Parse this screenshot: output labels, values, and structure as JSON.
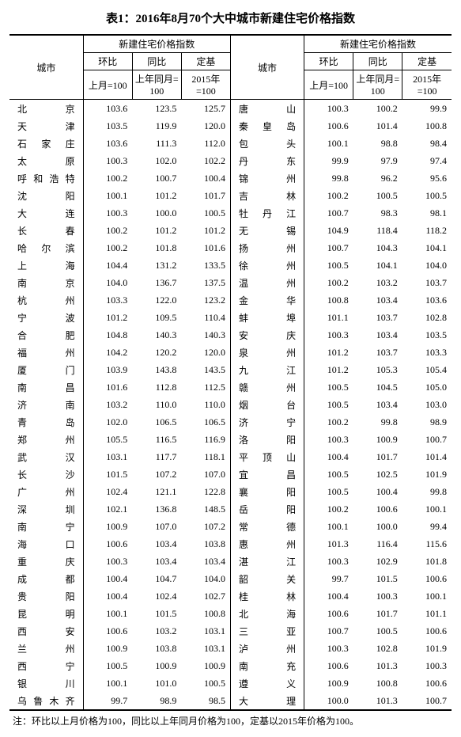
{
  "title": "表1：2016年8月70个大中城市新建住宅价格指数",
  "header": {
    "city": "城市",
    "index_group": "新建住宅价格指数",
    "mom": "环比",
    "yoy": "同比",
    "base": "定基",
    "mom_sub": "上月=100",
    "yoy_sub": "上年同月=\n100",
    "base_sub": "2015年\n=100"
  },
  "note": "注：环比以上月价格为100，同比以上年同月价格为100，定基以2015年价格为100。",
  "left_rows": [
    {
      "city": "北　　京",
      "mom": "103.6",
      "yoy": "123.5",
      "base": "125.7"
    },
    {
      "city": "天　　津",
      "mom": "103.5",
      "yoy": "119.9",
      "base": "120.0"
    },
    {
      "city": "石 家 庄",
      "mom": "103.6",
      "yoy": "111.3",
      "base": "112.0"
    },
    {
      "city": "太　　原",
      "mom": "100.3",
      "yoy": "102.0",
      "base": "102.2"
    },
    {
      "city": "呼和浩特",
      "mom": "100.2",
      "yoy": "100.7",
      "base": "100.4"
    },
    {
      "city": "沈　　阳",
      "mom": "100.1",
      "yoy": "101.2",
      "base": "101.7"
    },
    {
      "city": "大　　连",
      "mom": "100.3",
      "yoy": "100.0",
      "base": "100.5"
    },
    {
      "city": "长　　春",
      "mom": "100.2",
      "yoy": "101.2",
      "base": "101.2"
    },
    {
      "city": "哈 尔 滨",
      "mom": "100.2",
      "yoy": "101.8",
      "base": "101.6"
    },
    {
      "city": "上　　海",
      "mom": "104.4",
      "yoy": "131.2",
      "base": "133.5"
    },
    {
      "city": "南　　京",
      "mom": "104.0",
      "yoy": "136.7",
      "base": "137.5"
    },
    {
      "city": "杭　　州",
      "mom": "103.3",
      "yoy": "122.0",
      "base": "123.2"
    },
    {
      "city": "宁　　波",
      "mom": "101.2",
      "yoy": "109.5",
      "base": "110.4"
    },
    {
      "city": "合　　肥",
      "mom": "104.8",
      "yoy": "140.3",
      "base": "140.3"
    },
    {
      "city": "福　　州",
      "mom": "104.2",
      "yoy": "120.2",
      "base": "120.0"
    },
    {
      "city": "厦　　门",
      "mom": "103.9",
      "yoy": "143.8",
      "base": "143.5"
    },
    {
      "city": "南　　昌",
      "mom": "101.6",
      "yoy": "112.8",
      "base": "112.5"
    },
    {
      "city": "济　　南",
      "mom": "103.2",
      "yoy": "110.0",
      "base": "110.0"
    },
    {
      "city": "青　　岛",
      "mom": "102.0",
      "yoy": "106.5",
      "base": "106.5"
    },
    {
      "city": "郑　　州",
      "mom": "105.5",
      "yoy": "116.5",
      "base": "116.9"
    },
    {
      "city": "武　　汉",
      "mom": "103.1",
      "yoy": "117.7",
      "base": "118.1"
    },
    {
      "city": "长　　沙",
      "mom": "101.5",
      "yoy": "107.2",
      "base": "107.0"
    },
    {
      "city": "广　　州",
      "mom": "102.4",
      "yoy": "121.1",
      "base": "122.8"
    },
    {
      "city": "深　　圳",
      "mom": "102.1",
      "yoy": "136.8",
      "base": "148.5"
    },
    {
      "city": "南　　宁",
      "mom": "100.9",
      "yoy": "107.0",
      "base": "107.2"
    },
    {
      "city": "海　　口",
      "mom": "100.6",
      "yoy": "103.4",
      "base": "103.8"
    },
    {
      "city": "重　　庆",
      "mom": "100.3",
      "yoy": "103.4",
      "base": "103.4"
    },
    {
      "city": "成　　都",
      "mom": "100.4",
      "yoy": "104.7",
      "base": "104.0"
    },
    {
      "city": "贵　　阳",
      "mom": "100.4",
      "yoy": "102.4",
      "base": "102.7"
    },
    {
      "city": "昆　　明",
      "mom": "100.1",
      "yoy": "101.5",
      "base": "100.8"
    },
    {
      "city": "西　　安",
      "mom": "100.6",
      "yoy": "103.2",
      "base": "103.1"
    },
    {
      "city": "兰　　州",
      "mom": "100.9",
      "yoy": "103.8",
      "base": "103.1"
    },
    {
      "city": "西　　宁",
      "mom": "100.5",
      "yoy": "100.9",
      "base": "100.9"
    },
    {
      "city": "银　　川",
      "mom": "100.1",
      "yoy": "101.0",
      "base": "100.5"
    },
    {
      "city": "乌鲁木齐",
      "mom": "99.7",
      "yoy": "98.9",
      "base": "98.5"
    }
  ],
  "right_rows": [
    {
      "city": "唐　　山",
      "mom": "100.3",
      "yoy": "100.2",
      "base": "99.9"
    },
    {
      "city": "秦 皇 岛",
      "mom": "100.6",
      "yoy": "101.4",
      "base": "100.8"
    },
    {
      "city": "包　　头",
      "mom": "100.1",
      "yoy": "98.8",
      "base": "98.4"
    },
    {
      "city": "丹　　东",
      "mom": "99.9",
      "yoy": "97.9",
      "base": "97.4"
    },
    {
      "city": "锦　　州",
      "mom": "99.8",
      "yoy": "96.2",
      "base": "95.6"
    },
    {
      "city": "吉　　林",
      "mom": "100.2",
      "yoy": "100.5",
      "base": "100.5"
    },
    {
      "city": "牡 丹 江",
      "mom": "100.7",
      "yoy": "98.3",
      "base": "98.1"
    },
    {
      "city": "无　　锡",
      "mom": "104.9",
      "yoy": "118.4",
      "base": "118.2"
    },
    {
      "city": "扬　　州",
      "mom": "100.7",
      "yoy": "104.3",
      "base": "104.1"
    },
    {
      "city": "徐　　州",
      "mom": "100.5",
      "yoy": "104.1",
      "base": "104.0"
    },
    {
      "city": "温　　州",
      "mom": "100.2",
      "yoy": "103.2",
      "base": "103.7"
    },
    {
      "city": "金　　华",
      "mom": "100.8",
      "yoy": "103.4",
      "base": "103.6"
    },
    {
      "city": "蚌　　埠",
      "mom": "101.1",
      "yoy": "103.7",
      "base": "102.8"
    },
    {
      "city": "安　　庆",
      "mom": "100.3",
      "yoy": "103.4",
      "base": "103.5"
    },
    {
      "city": "泉　　州",
      "mom": "101.2",
      "yoy": "103.7",
      "base": "103.3"
    },
    {
      "city": "九　　江",
      "mom": "101.2",
      "yoy": "105.3",
      "base": "105.4"
    },
    {
      "city": "赣　　州",
      "mom": "100.5",
      "yoy": "104.5",
      "base": "105.0"
    },
    {
      "city": "烟　　台",
      "mom": "100.5",
      "yoy": "103.4",
      "base": "103.0"
    },
    {
      "city": "济　　宁",
      "mom": "100.2",
      "yoy": "99.8",
      "base": "98.9"
    },
    {
      "city": "洛　　阳",
      "mom": "100.3",
      "yoy": "100.9",
      "base": "100.7"
    },
    {
      "city": "平 顶 山",
      "mom": "100.4",
      "yoy": "101.7",
      "base": "101.4"
    },
    {
      "city": "宜　　昌",
      "mom": "100.5",
      "yoy": "102.5",
      "base": "101.9"
    },
    {
      "city": "襄　　阳",
      "mom": "100.5",
      "yoy": "100.4",
      "base": "99.8"
    },
    {
      "city": "岳　　阳",
      "mom": "100.2",
      "yoy": "100.6",
      "base": "100.1"
    },
    {
      "city": "常　　德",
      "mom": "100.1",
      "yoy": "100.0",
      "base": "99.4"
    },
    {
      "city": "惠　　州",
      "mom": "101.3",
      "yoy": "116.4",
      "base": "115.6"
    },
    {
      "city": "湛　　江",
      "mom": "100.3",
      "yoy": "102.9",
      "base": "101.8"
    },
    {
      "city": "韶　　关",
      "mom": "99.7",
      "yoy": "101.5",
      "base": "100.6"
    },
    {
      "city": "桂　　林",
      "mom": "100.4",
      "yoy": "100.3",
      "base": "100.1"
    },
    {
      "city": "北　　海",
      "mom": "100.6",
      "yoy": "101.7",
      "base": "101.1"
    },
    {
      "city": "三　　亚",
      "mom": "100.7",
      "yoy": "100.5",
      "base": "100.6"
    },
    {
      "city": "泸　　州",
      "mom": "100.3",
      "yoy": "102.8",
      "base": "101.9"
    },
    {
      "city": "南　　充",
      "mom": "100.6",
      "yoy": "101.3",
      "base": "100.3"
    },
    {
      "city": "遵　　义",
      "mom": "100.9",
      "yoy": "100.8",
      "base": "100.6"
    },
    {
      "city": "大　　理",
      "mom": "100.0",
      "yoy": "101.3",
      "base": "100.7"
    }
  ]
}
